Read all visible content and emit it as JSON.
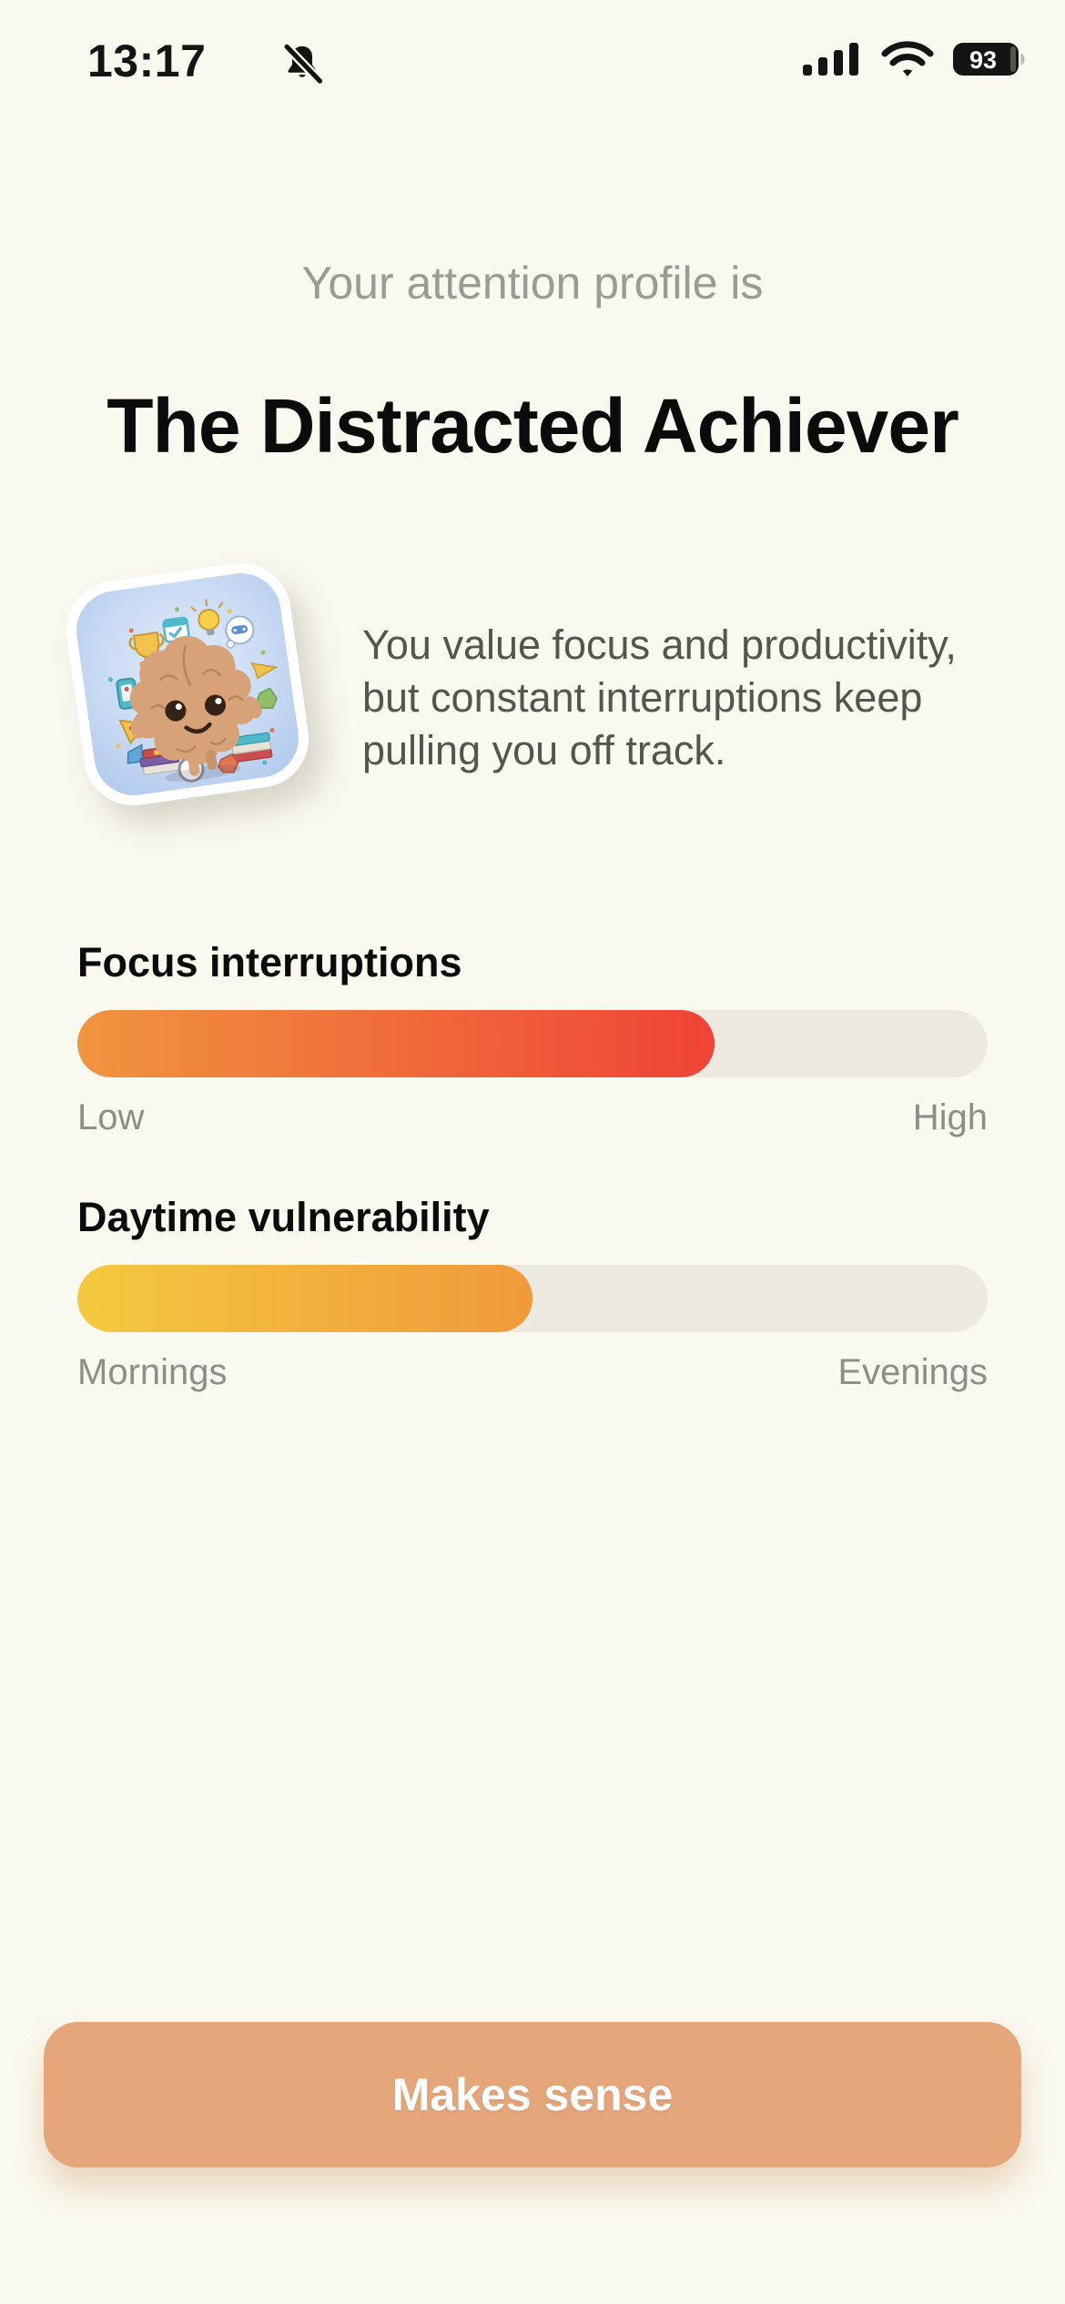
{
  "status_bar": {
    "time": "13:17",
    "battery_percent": "93",
    "icons": [
      "bell-slash-icon",
      "cellular-signal-icon",
      "wifi-icon",
      "battery-icon"
    ]
  },
  "header": {
    "eyebrow": "Your attention profile is",
    "title": "The Distracted Achiever"
  },
  "profile": {
    "description": "You value focus and productivity, but constant interruptions keep pulling you off track.",
    "sticker": "brain-character-sticker"
  },
  "meters": [
    {
      "label": "Focus interruptions",
      "value_pct": 70,
      "left_label": "Low",
      "right_label": "High",
      "fill_from": "#F0943E",
      "fill_to": "#EF4337"
    },
    {
      "label": "Daytime vulnerability",
      "value_pct": 50,
      "left_label": "Mornings",
      "right_label": "Evenings",
      "fill_from": "#F4C93E",
      "fill_to": "#F0993C"
    }
  ],
  "cta": {
    "label": "Makes sense"
  },
  "colors": {
    "background": "#FAF9F0",
    "track": "#ECE9E1",
    "button": "#E5A67A",
    "title_text": "#0B0B0B",
    "muted_text": "#9B9B96",
    "body_text": "#55544D"
  }
}
